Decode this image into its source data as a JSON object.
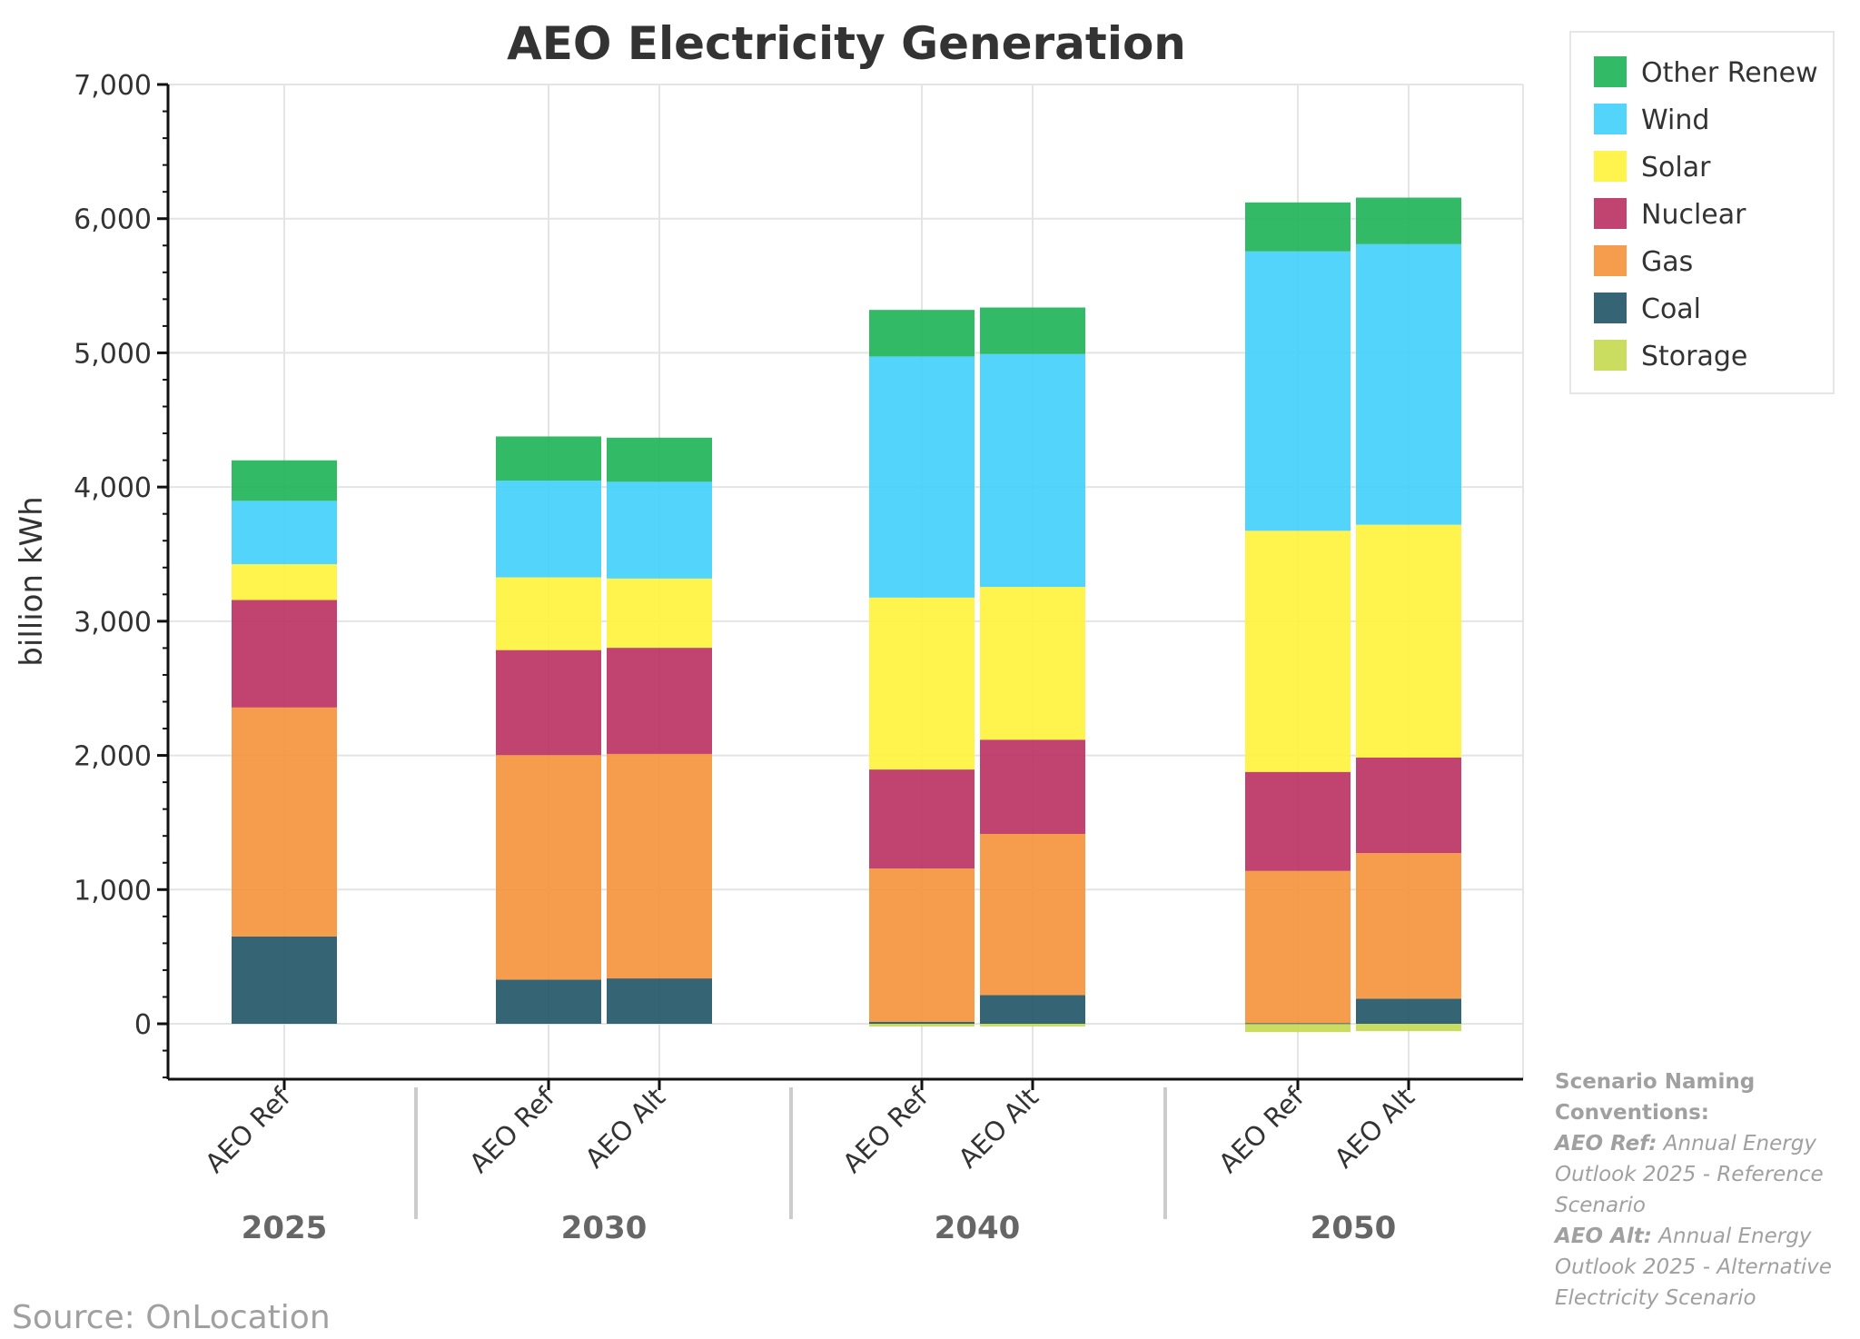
{
  "chart_data": {
    "type": "bar",
    "stacked": true,
    "title": "AEO Electricity Generation",
    "xlabel": "",
    "ylabel": "billion kWh",
    "ylim": [
      -400,
      7000
    ],
    "yticks": [
      0,
      1000,
      2000,
      3000,
      4000,
      5000,
      6000,
      7000
    ],
    "ytick_labels": [
      "0",
      "1,000",
      "2,000",
      "3,000",
      "4,000",
      "5,000",
      "6,000",
      "7,000"
    ],
    "grid": true,
    "legend_position": "top-right, outside",
    "groups": [
      {
        "label": "2025",
        "bars": [
          "AEO Ref"
        ]
      },
      {
        "label": "2030",
        "bars": [
          "AEO Ref",
          "AEO Alt"
        ]
      },
      {
        "label": "2040",
        "bars": [
          "AEO Ref",
          "AEO Alt"
        ]
      },
      {
        "label": "2050",
        "bars": [
          "AEO Ref",
          "AEO Alt"
        ]
      }
    ],
    "categories": [
      "2025 AEO Ref",
      "2030 AEO Ref",
      "2030 AEO Alt",
      "2040 AEO Ref",
      "2040 AEO Alt",
      "2050 AEO Ref",
      "2050 AEO Alt"
    ],
    "series": [
      {
        "name": "Storage",
        "color": "#c5d94f",
        "values": [
          0,
          0,
          0,
          -20,
          -20,
          -62,
          -55
        ]
      },
      {
        "name": "Coal",
        "color": "#1f5366",
        "values": [
          650,
          329,
          338,
          15,
          214,
          5,
          187
        ]
      },
      {
        "name": "Gas",
        "color": "#f5923a",
        "values": [
          1707,
          1673,
          1673,
          1142,
          1201,
          1134,
          1085
        ]
      },
      {
        "name": "Nuclear",
        "color": "#b9305f",
        "values": [
          801,
          783,
          791,
          738,
          702,
          738,
          712
        ]
      },
      {
        "name": "Solar",
        "color": "#fff23a",
        "values": [
          267,
          542,
          516,
          1281,
          1139,
          1797,
          1735
        ]
      },
      {
        "name": "Wind",
        "color": "#40d0fb",
        "values": [
          472,
          721,
          721,
          1797,
          1735,
          2082,
          2091
        ]
      },
      {
        "name": "Other Renew",
        "color": "#1db356",
        "values": [
          302,
          329,
          329,
          347,
          347,
          365,
          347
        ]
      }
    ],
    "legend_order": [
      "Other Renew",
      "Wind",
      "Solar",
      "Nuclear",
      "Gas",
      "Coal",
      "Storage"
    ]
  },
  "notes": {
    "heading": "Scenario Naming Conventions:",
    "ref_label": "AEO Ref:",
    "ref_text": "Annual Energy Outlook 2025 - Reference Scenario",
    "alt_label": "AEO Alt:",
    "alt_text": "Annual Energy Outlook 2025 - Alternative Electricity Scenario"
  },
  "source": "Source: OnLocation"
}
